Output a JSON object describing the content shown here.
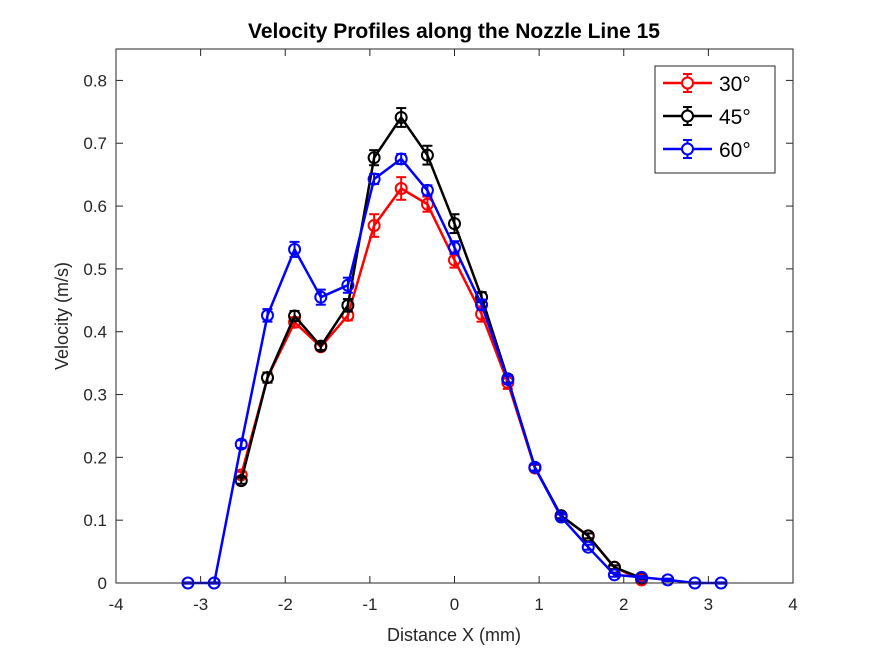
{
  "chart_data": {
    "type": "line",
    "title": "Velocity Profiles along the Nozzle Line 15",
    "xlabel": "Distance X (mm)",
    "ylabel": "Velocity (m/s)",
    "xlim": [
      -4,
      4
    ],
    "ylim": [
      0,
      0.85
    ],
    "xticks": [
      "-4",
      "-3",
      "-2",
      "-1",
      "0",
      "1",
      "2",
      "3",
      "4"
    ],
    "yticks": [
      "0",
      "0.1",
      "0.2",
      "0.3",
      "0.4",
      "0.5",
      "0.6",
      "0.7",
      "0.8"
    ],
    "grid": false,
    "legend_position": "top-right",
    "series": [
      {
        "name": "30°",
        "color": "#ff0000",
        "points": [
          {
            "x": -2.52,
            "y": 0.172,
            "err": 0.005
          },
          {
            "x": -2.21,
            "y": 0.327,
            "err": 0.008
          },
          {
            "x": -1.89,
            "y": 0.415,
            "err": 0.008
          },
          {
            "x": -1.58,
            "y": 0.376,
            "err": 0.006
          },
          {
            "x": -1.26,
            "y": 0.426,
            "err": 0.008
          },
          {
            "x": -0.95,
            "y": 0.569,
            "err": 0.018
          },
          {
            "x": -0.63,
            "y": 0.628,
            "err": 0.018
          },
          {
            "x": -0.32,
            "y": 0.603,
            "err": 0.012
          },
          {
            "x": 0.0,
            "y": 0.514,
            "err": 0.012
          },
          {
            "x": 0.32,
            "y": 0.428,
            "err": 0.012
          },
          {
            "x": 0.63,
            "y": 0.319,
            "err": 0.01
          },
          {
            "x": 0.95,
            "y": 0.183,
            "err": 0.005
          },
          {
            "x": 1.26,
            "y": 0.107,
            "err": 0.004
          },
          {
            "x": 1.58,
            "y": 0.075,
            "err": 0.004
          },
          {
            "x": 1.89,
            "y": 0.025,
            "err": 0.003
          },
          {
            "x": 2.21,
            "y": 0.005,
            "err": 0.002
          }
        ]
      },
      {
        "name": "45°",
        "color": "#000000",
        "points": [
          {
            "x": -2.52,
            "y": 0.163,
            "err": 0.005
          },
          {
            "x": -2.21,
            "y": 0.327,
            "err": 0.008
          },
          {
            "x": -1.89,
            "y": 0.425,
            "err": 0.008
          },
          {
            "x": -1.58,
            "y": 0.377,
            "err": 0.006
          },
          {
            "x": -1.26,
            "y": 0.442,
            "err": 0.01
          },
          {
            "x": -0.95,
            "y": 0.677,
            "err": 0.012
          },
          {
            "x": -0.63,
            "y": 0.741,
            "err": 0.015
          },
          {
            "x": -0.32,
            "y": 0.681,
            "err": 0.015
          },
          {
            "x": 0.0,
            "y": 0.572,
            "err": 0.015
          },
          {
            "x": 0.32,
            "y": 0.455,
            "err": 0.008
          },
          {
            "x": 0.63,
            "y": 0.325,
            "err": 0.006
          },
          {
            "x": 0.95,
            "y": 0.184,
            "err": 0.005
          },
          {
            "x": 1.26,
            "y": 0.107,
            "err": 0.004
          },
          {
            "x": 1.58,
            "y": 0.075,
            "err": 0.004
          },
          {
            "x": 1.89,
            "y": 0.025,
            "err": 0.003
          },
          {
            "x": 2.21,
            "y": 0.008,
            "err": 0.002
          }
        ]
      },
      {
        "name": "60°",
        "color": "#0000ff",
        "points": [
          {
            "x": -3.15,
            "y": 0.0,
            "err": 0.001
          },
          {
            "x": -2.84,
            "y": 0.0,
            "err": 0.001
          },
          {
            "x": -2.52,
            "y": 0.221,
            "err": 0.006
          },
          {
            "x": -2.21,
            "y": 0.426,
            "err": 0.01
          },
          {
            "x": -1.89,
            "y": 0.531,
            "err": 0.012
          },
          {
            "x": -1.58,
            "y": 0.455,
            "err": 0.012
          },
          {
            "x": -1.26,
            "y": 0.474,
            "err": 0.012
          },
          {
            "x": -0.95,
            "y": 0.643,
            "err": 0.008
          },
          {
            "x": -0.63,
            "y": 0.675,
            "err": 0.008
          },
          {
            "x": -0.32,
            "y": 0.625,
            "err": 0.008
          },
          {
            "x": 0.0,
            "y": 0.534,
            "err": 0.01
          },
          {
            "x": 0.32,
            "y": 0.443,
            "err": 0.008
          },
          {
            "x": 0.63,
            "y": 0.324,
            "err": 0.006
          },
          {
            "x": 0.95,
            "y": 0.184,
            "err": 0.005
          },
          {
            "x": 1.26,
            "y": 0.105,
            "err": 0.004
          },
          {
            "x": 1.58,
            "y": 0.057,
            "err": 0.004
          },
          {
            "x": 1.89,
            "y": 0.013,
            "err": 0.003
          },
          {
            "x": 2.21,
            "y": 0.009,
            "err": 0.002
          },
          {
            "x": 2.52,
            "y": 0.005,
            "err": 0.002
          },
          {
            "x": 2.84,
            "y": 0.0,
            "err": 0.001
          },
          {
            "x": 3.15,
            "y": 0.0,
            "err": 0.001
          }
        ]
      }
    ]
  }
}
